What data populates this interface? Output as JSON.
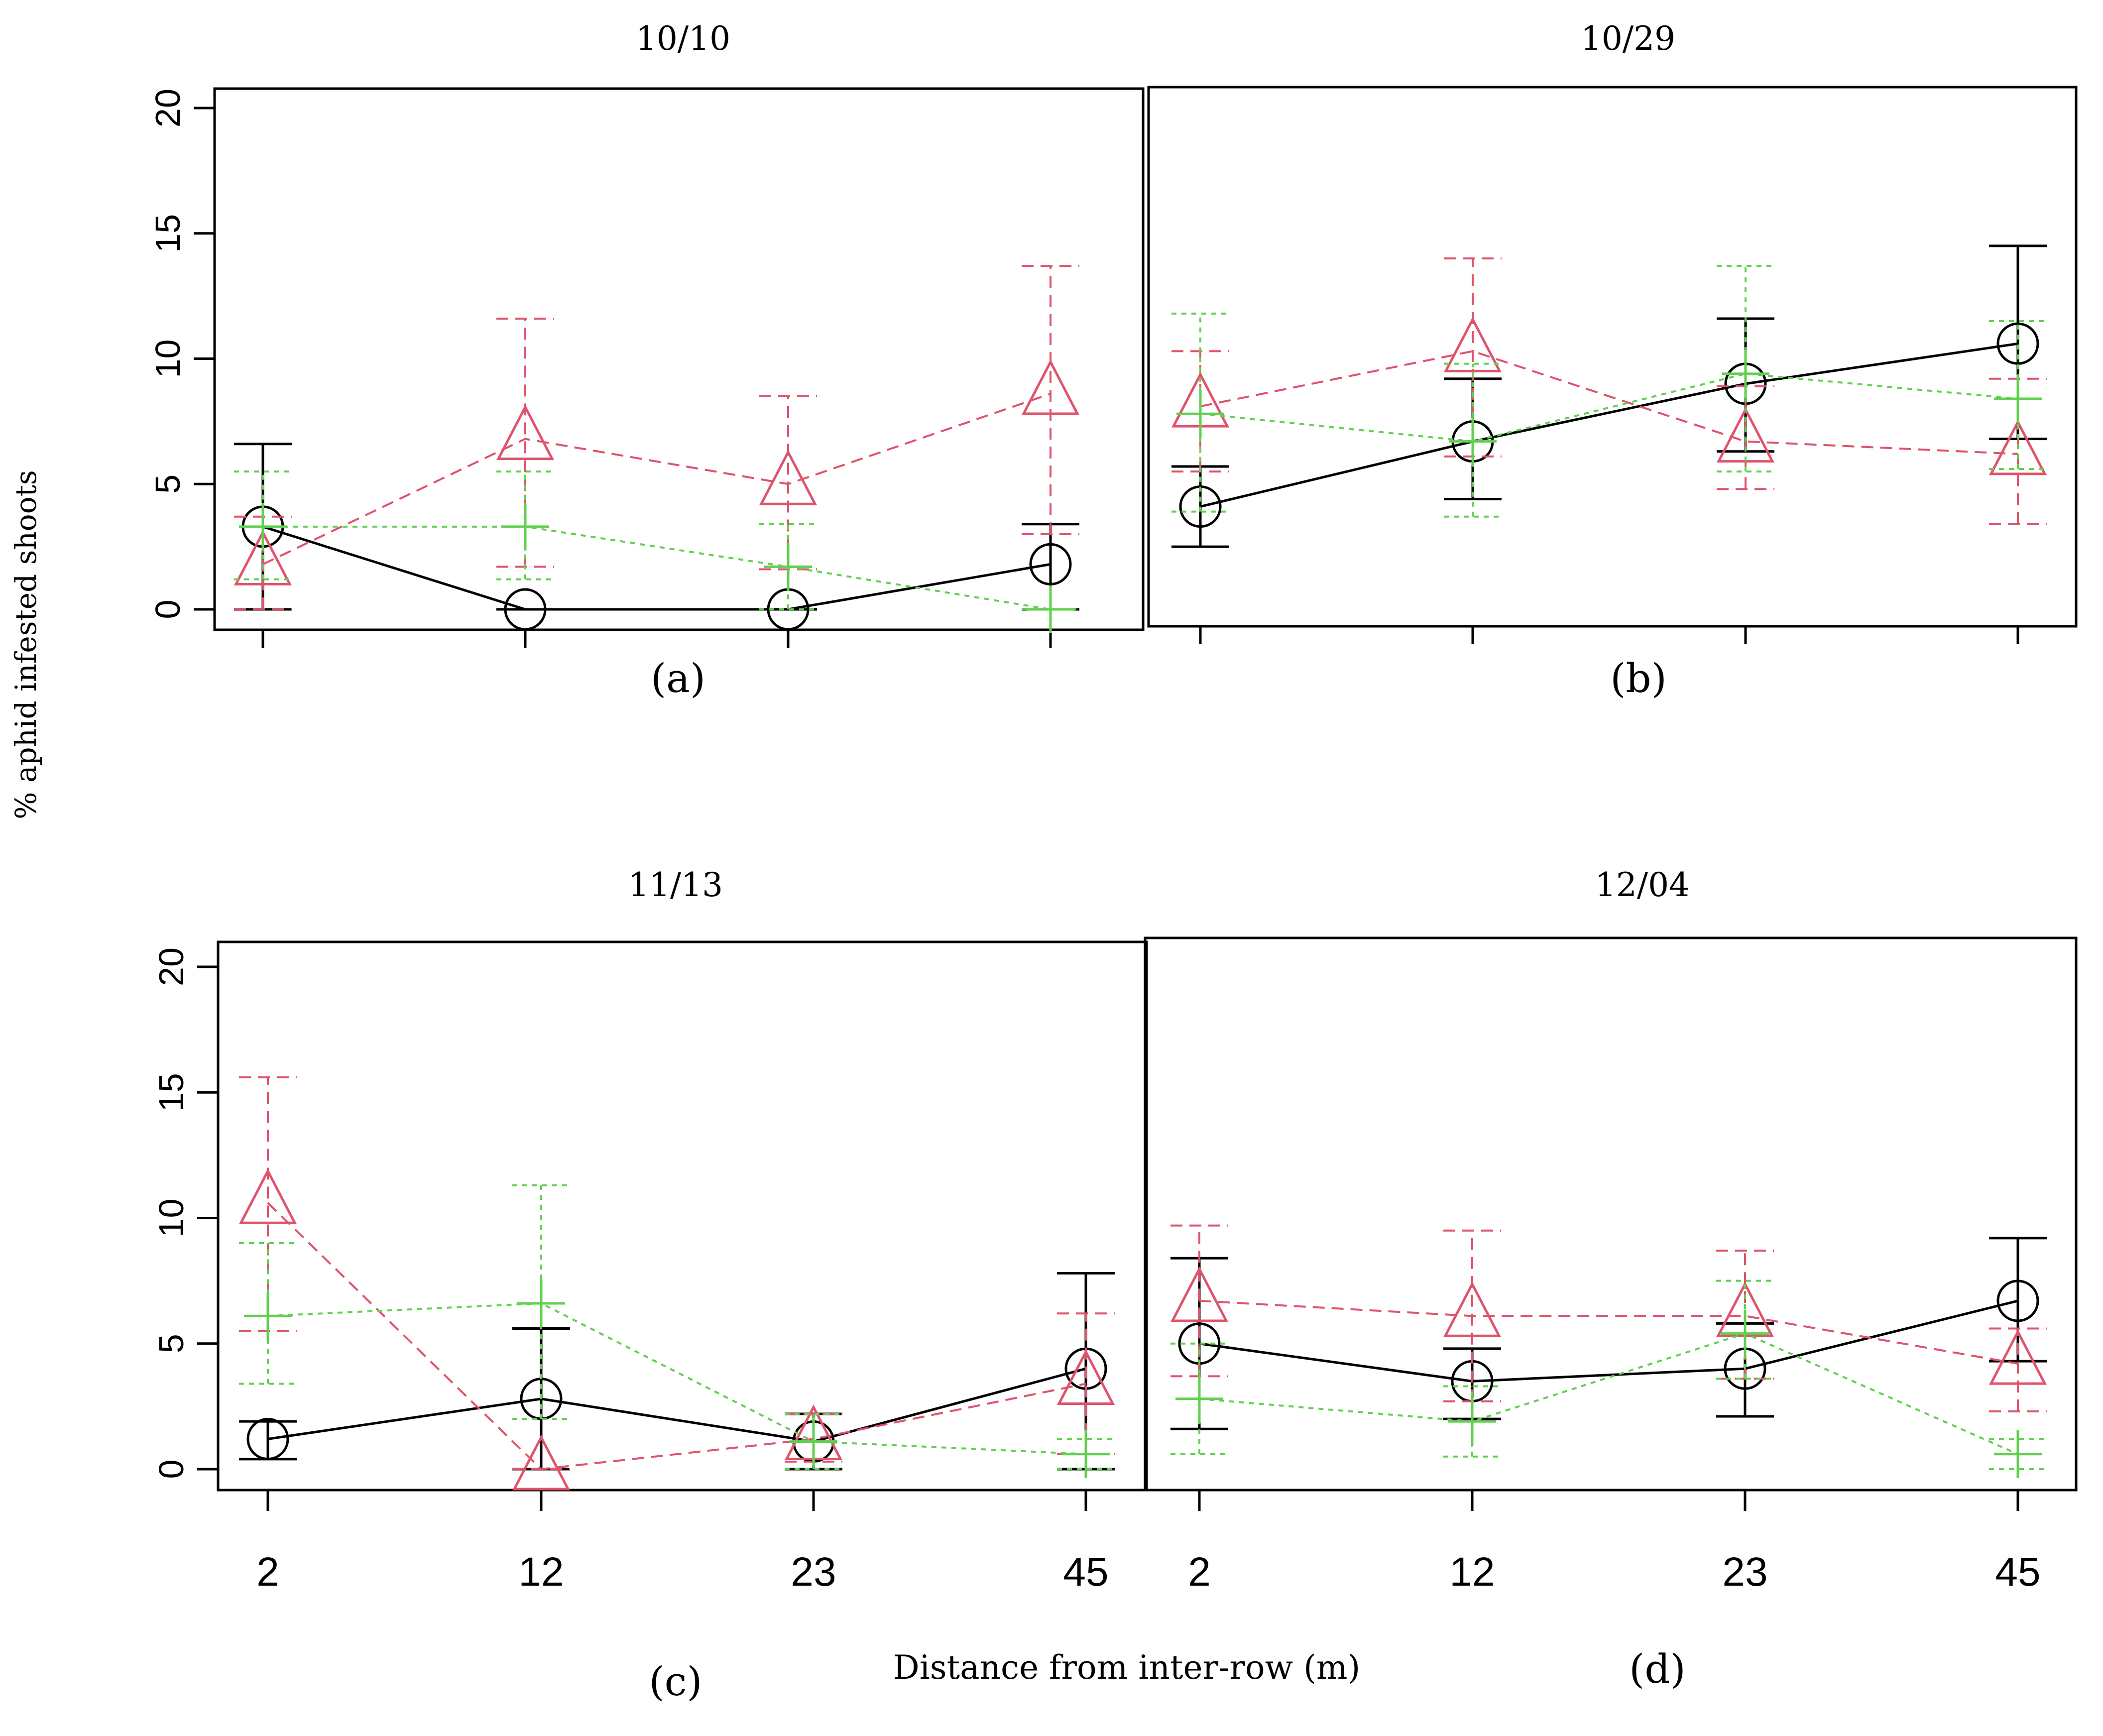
{
  "figure": {
    "ylabel": "% aphid infested shoots",
    "xlabel": "Distance from inter-row (m)"
  },
  "colors": {
    "circle": "#000000",
    "triangle": "#DF536B",
    "plus": "#61D04F"
  },
  "chart_data": [
    {
      "type": "line",
      "title": "10/10",
      "caption": "(a)",
      "categories": [
        "2",
        "12",
        "23",
        "45"
      ],
      "ylim": [
        0,
        20
      ],
      "yticks": [
        "0",
        "5",
        "10",
        "15",
        "20"
      ],
      "series": [
        {
          "name": "circle",
          "marker": "circle",
          "values": [
            3.3,
            0.0,
            0.0,
            1.8
          ],
          "lower": [
            0.0,
            0.0,
            0.0,
            0.0
          ],
          "upper": [
            6.6,
            0.0,
            0.0,
            3.4
          ]
        },
        {
          "name": "triangle",
          "marker": "triangle",
          "values": [
            1.8,
            6.8,
            5.0,
            8.6
          ],
          "lower": [
            0.0,
            1.7,
            1.6,
            3.0
          ],
          "upper": [
            3.7,
            11.6,
            8.5,
            13.7
          ]
        },
        {
          "name": "plus",
          "marker": "plus",
          "values": [
            3.3,
            3.3,
            1.7,
            0.0
          ],
          "lower": [
            1.2,
            1.2,
            0.0,
            0.0
          ],
          "upper": [
            5.5,
            5.5,
            3.4,
            0.0
          ]
        }
      ]
    },
    {
      "type": "line",
      "title": "10/29",
      "caption": "(b)",
      "categories": [
        "2",
        "12",
        "23",
        "45"
      ],
      "ylim": [
        0,
        20
      ],
      "yticks": [
        "0",
        "5",
        "10",
        "15",
        "20"
      ],
      "series": [
        {
          "name": "circle",
          "marker": "circle",
          "values": [
            4.1,
            6.7,
            9.0,
            10.6
          ],
          "lower": [
            2.5,
            4.4,
            6.3,
            6.8
          ],
          "upper": [
            5.7,
            9.2,
            11.6,
            14.5
          ]
        },
        {
          "name": "triangle",
          "marker": "triangle",
          "values": [
            8.1,
            10.3,
            6.7,
            6.2
          ],
          "lower": [
            5.5,
            6.1,
            4.8,
            3.4
          ],
          "upper": [
            10.3,
            14.0,
            8.9,
            9.2
          ]
        },
        {
          "name": "plus",
          "marker": "plus",
          "values": [
            7.8,
            6.7,
            9.4,
            8.4
          ],
          "lower": [
            3.9,
            3.7,
            5.5,
            5.6
          ],
          "upper": [
            11.8,
            9.8,
            13.7,
            11.5
          ]
        }
      ]
    },
    {
      "type": "line",
      "title": "11/13",
      "caption": "(c)",
      "categories": [
        "2",
        "12",
        "23",
        "45"
      ],
      "ylim": [
        0,
        20
      ],
      "yticks": [
        "0",
        "5",
        "10",
        "15",
        "20"
      ],
      "series": [
        {
          "name": "circle",
          "marker": "circle",
          "values": [
            1.2,
            2.8,
            1.1,
            4.0
          ],
          "lower": [
            0.4,
            0.0,
            0.0,
            0.0
          ],
          "upper": [
            1.9,
            5.6,
            2.2,
            7.8
          ]
        },
        {
          "name": "triangle",
          "marker": "triangle",
          "values": [
            10.6,
            0.0,
            1.2,
            3.4
          ],
          "lower": [
            5.5,
            0.0,
            0.3,
            0.6
          ],
          "upper": [
            15.6,
            0.0,
            2.2,
            6.2
          ]
        },
        {
          "name": "plus",
          "marker": "plus",
          "values": [
            6.1,
            6.6,
            1.1,
            0.6
          ],
          "lower": [
            3.4,
            2.0,
            0.0,
            0.0
          ],
          "upper": [
            9.0,
            11.3,
            2.2,
            1.2
          ]
        }
      ]
    },
    {
      "type": "line",
      "title": "12/04",
      "caption": "(d)",
      "categories": [
        "2",
        "12",
        "23",
        "45"
      ],
      "ylim": [
        0,
        20
      ],
      "yticks": [
        "0",
        "5",
        "10",
        "15",
        "20"
      ],
      "series": [
        {
          "name": "circle",
          "marker": "circle",
          "values": [
            5.0,
            3.5,
            4.0,
            6.7
          ],
          "lower": [
            1.6,
            2.0,
            2.1,
            4.3
          ],
          "upper": [
            8.4,
            4.8,
            5.8,
            9.2
          ]
        },
        {
          "name": "triangle",
          "marker": "triangle",
          "values": [
            6.7,
            6.1,
            6.1,
            4.2
          ],
          "lower": [
            3.7,
            2.7,
            3.6,
            2.3
          ],
          "upper": [
            9.7,
            9.5,
            8.7,
            5.6
          ]
        },
        {
          "name": "plus",
          "marker": "plus",
          "values": [
            2.8,
            1.9,
            5.4,
            0.6
          ],
          "lower": [
            0.6,
            0.5,
            3.6,
            0.0
          ],
          "upper": [
            5.0,
            3.3,
            7.5,
            1.2
          ]
        }
      ]
    }
  ]
}
